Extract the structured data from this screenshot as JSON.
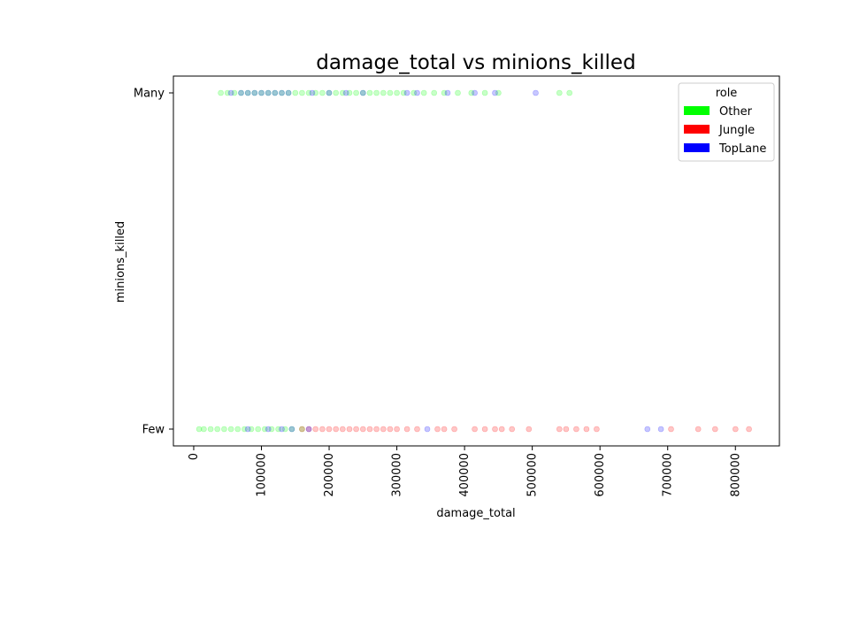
{
  "chart_data": {
    "type": "scatter",
    "title": "damage_total vs minions_killed",
    "xlabel": "damage_total",
    "ylabel": "minions_killed",
    "xlim": [
      -30000,
      865000
    ],
    "x_ticks": [
      0,
      100000,
      200000,
      300000,
      400000,
      500000,
      600000,
      700000,
      800000
    ],
    "y_categories": [
      "Few",
      "Many"
    ],
    "grid": false,
    "legend": {
      "title": "role",
      "placement": "top-right"
    },
    "series": [
      {
        "name": "Other",
        "color": "#00ff00",
        "points": [
          {
            "x": 8000,
            "y": "Few"
          },
          {
            "x": 15000,
            "y": "Few"
          },
          {
            "x": 25000,
            "y": "Few"
          },
          {
            "x": 35000,
            "y": "Few"
          },
          {
            "x": 45000,
            "y": "Few"
          },
          {
            "x": 55000,
            "y": "Few"
          },
          {
            "x": 65000,
            "y": "Few"
          },
          {
            "x": 75000,
            "y": "Few"
          },
          {
            "x": 85000,
            "y": "Few"
          },
          {
            "x": 95000,
            "y": "Few"
          },
          {
            "x": 105000,
            "y": "Few"
          },
          {
            "x": 115000,
            "y": "Few"
          },
          {
            "x": 125000,
            "y": "Few"
          },
          {
            "x": 135000,
            "y": "Few"
          },
          {
            "x": 145000,
            "y": "Few"
          },
          {
            "x": 160000,
            "y": "Few"
          },
          {
            "x": 40000,
            "y": "Many"
          },
          {
            "x": 50000,
            "y": "Many"
          },
          {
            "x": 60000,
            "y": "Many"
          },
          {
            "x": 70000,
            "y": "Many"
          },
          {
            "x": 80000,
            "y": "Many"
          },
          {
            "x": 90000,
            "y": "Many"
          },
          {
            "x": 100000,
            "y": "Many"
          },
          {
            "x": 110000,
            "y": "Many"
          },
          {
            "x": 120000,
            "y": "Many"
          },
          {
            "x": 130000,
            "y": "Many"
          },
          {
            "x": 140000,
            "y": "Many"
          },
          {
            "x": 150000,
            "y": "Many"
          },
          {
            "x": 160000,
            "y": "Many"
          },
          {
            "x": 170000,
            "y": "Many"
          },
          {
            "x": 180000,
            "y": "Many"
          },
          {
            "x": 190000,
            "y": "Many"
          },
          {
            "x": 200000,
            "y": "Many"
          },
          {
            "x": 210000,
            "y": "Many"
          },
          {
            "x": 220000,
            "y": "Many"
          },
          {
            "x": 230000,
            "y": "Many"
          },
          {
            "x": 240000,
            "y": "Many"
          },
          {
            "x": 250000,
            "y": "Many"
          },
          {
            "x": 260000,
            "y": "Many"
          },
          {
            "x": 270000,
            "y": "Many"
          },
          {
            "x": 280000,
            "y": "Many"
          },
          {
            "x": 290000,
            "y": "Many"
          },
          {
            "x": 300000,
            "y": "Many"
          },
          {
            "x": 310000,
            "y": "Many"
          },
          {
            "x": 325000,
            "y": "Many"
          },
          {
            "x": 340000,
            "y": "Many"
          },
          {
            "x": 355000,
            "y": "Many"
          },
          {
            "x": 370000,
            "y": "Many"
          },
          {
            "x": 390000,
            "y": "Many"
          },
          {
            "x": 410000,
            "y": "Many"
          },
          {
            "x": 430000,
            "y": "Many"
          },
          {
            "x": 450000,
            "y": "Many"
          },
          {
            "x": 540000,
            "y": "Many"
          },
          {
            "x": 555000,
            "y": "Many"
          }
        ]
      },
      {
        "name": "Jungle",
        "color": "#ff0000",
        "points": [
          {
            "x": 160000,
            "y": "Few"
          },
          {
            "x": 170000,
            "y": "Few"
          },
          {
            "x": 180000,
            "y": "Few"
          },
          {
            "x": 190000,
            "y": "Few"
          },
          {
            "x": 200000,
            "y": "Few"
          },
          {
            "x": 210000,
            "y": "Few"
          },
          {
            "x": 220000,
            "y": "Few"
          },
          {
            "x": 230000,
            "y": "Few"
          },
          {
            "x": 240000,
            "y": "Few"
          },
          {
            "x": 250000,
            "y": "Few"
          },
          {
            "x": 260000,
            "y": "Few"
          },
          {
            "x": 270000,
            "y": "Few"
          },
          {
            "x": 280000,
            "y": "Few"
          },
          {
            "x": 290000,
            "y": "Few"
          },
          {
            "x": 300000,
            "y": "Few"
          },
          {
            "x": 315000,
            "y": "Few"
          },
          {
            "x": 330000,
            "y": "Few"
          },
          {
            "x": 360000,
            "y": "Few"
          },
          {
            "x": 370000,
            "y": "Few"
          },
          {
            "x": 385000,
            "y": "Few"
          },
          {
            "x": 415000,
            "y": "Few"
          },
          {
            "x": 430000,
            "y": "Few"
          },
          {
            "x": 445000,
            "y": "Few"
          },
          {
            "x": 455000,
            "y": "Few"
          },
          {
            "x": 470000,
            "y": "Few"
          },
          {
            "x": 495000,
            "y": "Few"
          },
          {
            "x": 540000,
            "y": "Few"
          },
          {
            "x": 550000,
            "y": "Few"
          },
          {
            "x": 565000,
            "y": "Few"
          },
          {
            "x": 580000,
            "y": "Few"
          },
          {
            "x": 595000,
            "y": "Few"
          },
          {
            "x": 705000,
            "y": "Few"
          },
          {
            "x": 745000,
            "y": "Few"
          },
          {
            "x": 770000,
            "y": "Few"
          },
          {
            "x": 800000,
            "y": "Few"
          },
          {
            "x": 820000,
            "y": "Few"
          }
        ]
      },
      {
        "name": "TopLane",
        "color": "#0000ff",
        "points": [
          {
            "x": 80000,
            "y": "Few"
          },
          {
            "x": 110000,
            "y": "Few"
          },
          {
            "x": 130000,
            "y": "Few"
          },
          {
            "x": 145000,
            "y": "Few"
          },
          {
            "x": 170000,
            "y": "Few"
          },
          {
            "x": 345000,
            "y": "Few"
          },
          {
            "x": 670000,
            "y": "Few"
          },
          {
            "x": 690000,
            "y": "Few"
          },
          {
            "x": 55000,
            "y": "Many"
          },
          {
            "x": 70000,
            "y": "Many"
          },
          {
            "x": 80000,
            "y": "Many"
          },
          {
            "x": 90000,
            "y": "Many"
          },
          {
            "x": 100000,
            "y": "Many"
          },
          {
            "x": 110000,
            "y": "Many"
          },
          {
            "x": 120000,
            "y": "Many"
          },
          {
            "x": 130000,
            "y": "Many"
          },
          {
            "x": 140000,
            "y": "Many"
          },
          {
            "x": 175000,
            "y": "Many"
          },
          {
            "x": 200000,
            "y": "Many"
          },
          {
            "x": 225000,
            "y": "Many"
          },
          {
            "x": 250000,
            "y": "Many"
          },
          {
            "x": 315000,
            "y": "Many"
          },
          {
            "x": 330000,
            "y": "Many"
          },
          {
            "x": 375000,
            "y": "Many"
          },
          {
            "x": 415000,
            "y": "Many"
          },
          {
            "x": 445000,
            "y": "Many"
          },
          {
            "x": 505000,
            "y": "Many"
          }
        ]
      }
    ]
  }
}
